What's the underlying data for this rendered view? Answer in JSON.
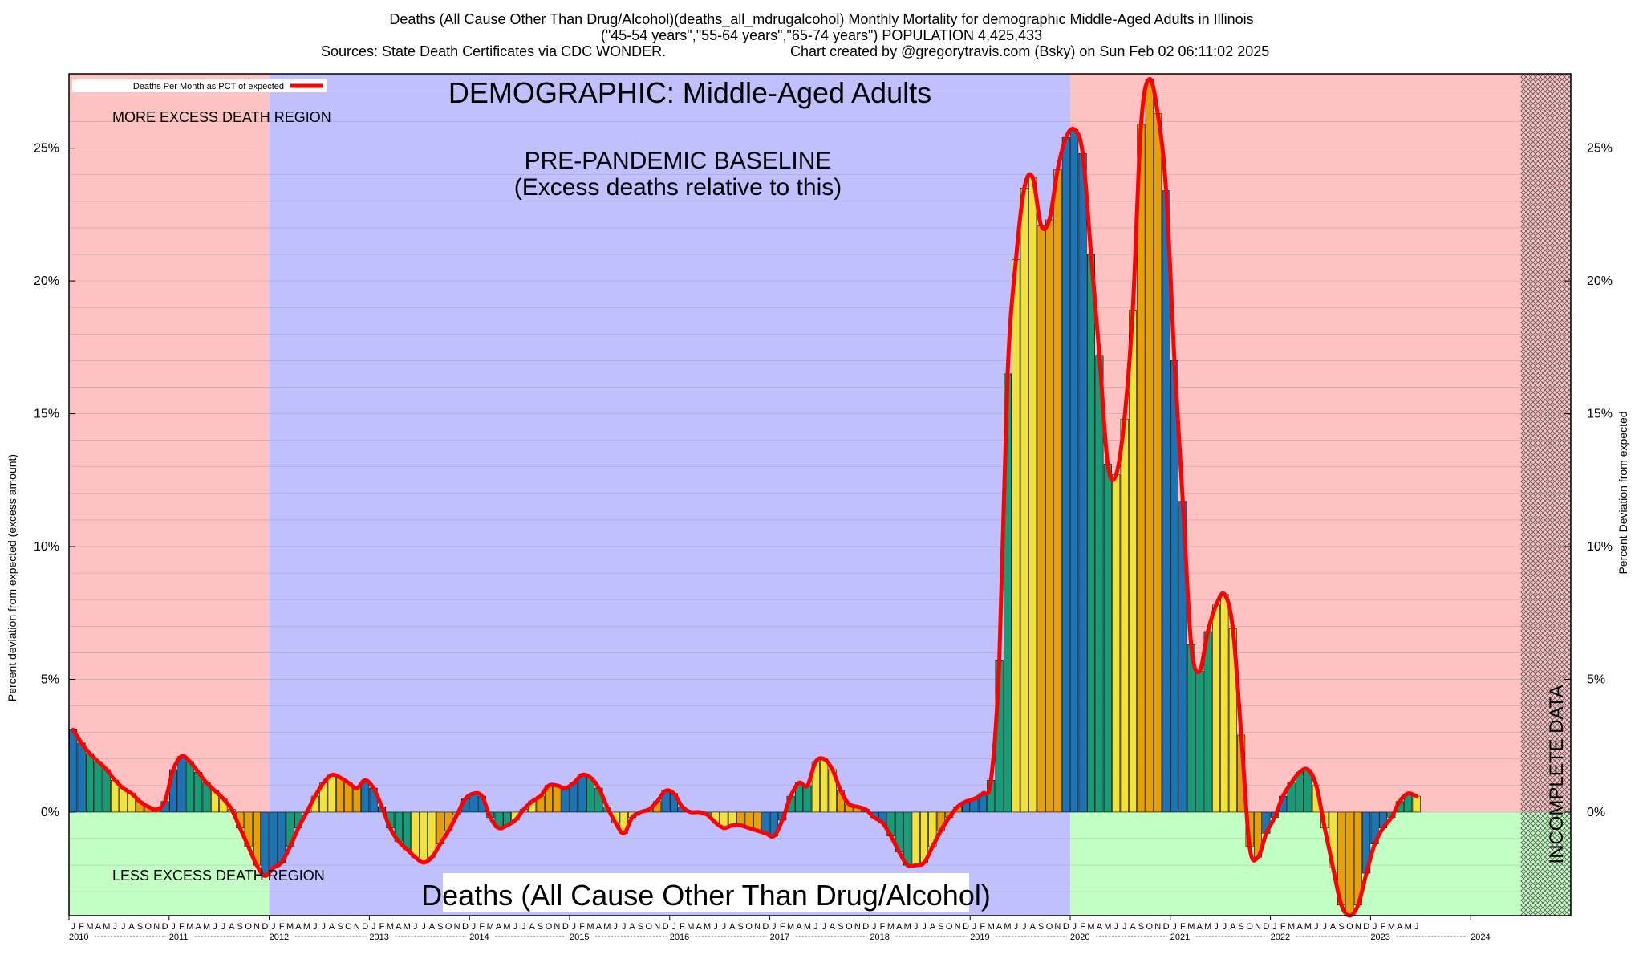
{
  "chart_data": {
    "type": "bar",
    "title_lines": [
      "Deaths (All Cause Other Than Drug/Alcohol)(deaths_all_mdrugalcohol) Monthly Mortality for demographic Middle-Aged Adults in Illinois",
      "(\"45-54 years\",\"55-64 years\",\"65-74 years\") POPULATION 4,425,433"
    ],
    "source_left": "Sources: State Death Certificates via CDC WONDER.",
    "source_right": "Chart created by @gregorytravis.com (Bsky) on Sun Feb 02 06:11:02 2025",
    "legend_label": "Deaths Per Month as PCT of expected",
    "demographic_label": "DEMOGRAPHIC: Middle-Aged Adults",
    "baseline_label_1": "PRE-PANDEMIC BASELINE",
    "baseline_label_2": "(Excess deaths relative to this)",
    "more_region_label": "MORE EXCESS DEATH REGION",
    "less_region_label": "LESS EXCESS DEATH REGION",
    "bottom_title": "Deaths (All Cause Other Than Drug/Alcohol)",
    "incomplete_label": "INCOMPLETE DATA",
    "ylabel_left": "Percent deviation from expected (excess amount)",
    "ylabel_right": "Percent Deviation from expected",
    "ylim": [
      -3.9,
      27.8
    ],
    "yticks": [
      0,
      5,
      10,
      15,
      20,
      25
    ],
    "ytick_labels": [
      "0%",
      "5%",
      "10%",
      "15%",
      "20%",
      "25%"
    ],
    "years": [
      "2010",
      "2011",
      "2012",
      "2013",
      "2014",
      "2015",
      "2016",
      "2017",
      "2018",
      "2019",
      "2020",
      "2021",
      "2022",
      "2023",
      "2024"
    ],
    "month_letters": [
      "J",
      "F",
      "M",
      "A",
      "M",
      "J",
      "J",
      "A",
      "S",
      "O",
      "N",
      "D"
    ],
    "start": "2010-01",
    "baseline_period": [
      "2012-01",
      "2019-12"
    ],
    "incomplete_from": "2024-07",
    "series_colors": {
      "winter": "#1a74b6",
      "spring": "#169c76",
      "summer": "#f2e33c",
      "autumn": "#e5a00a"
    },
    "line_color": "#ff0000",
    "region_colors": {
      "more": "#ffc2c2",
      "less": "#c2ffc2",
      "baseline": "#c0c0ff"
    },
    "values": [
      3.1,
      2.6,
      2.2,
      1.9,
      1.6,
      1.2,
      0.9,
      0.7,
      0.4,
      0.2,
      0.1,
      0.4,
      1.6,
      2.1,
      1.9,
      1.5,
      1.1,
      0.8,
      0.5,
      0.1,
      -0.6,
      -1.3,
      -2.0,
      -2.4,
      -2.1,
      -1.9,
      -1.3,
      -0.6,
      0.0,
      0.6,
      1.1,
      1.4,
      1.3,
      1.1,
      0.9,
      1.2,
      0.9,
      0.2,
      -0.6,
      -1.1,
      -1.4,
      -1.7,
      -1.9,
      -1.7,
      -1.2,
      -0.7,
      -0.1,
      0.5,
      0.7,
      0.6,
      -0.2,
      -0.6,
      -0.5,
      -0.3,
      0.1,
      0.4,
      0.6,
      1.0,
      1.0,
      0.9,
      1.1,
      1.4,
      1.3,
      0.9,
      0.2,
      -0.4,
      -0.8,
      -0.2,
      0.0,
      0.1,
      0.4,
      0.8,
      0.7,
      0.2,
      0.0,
      0.0,
      -0.1,
      -0.4,
      -0.6,
      -0.5,
      -0.5,
      -0.6,
      -0.7,
      -0.8,
      -0.9,
      -0.3,
      0.6,
      1.1,
      1.0,
      1.9,
      2.0,
      1.6,
      0.8,
      0.3,
      0.2,
      0.1,
      -0.2,
      -0.4,
      -0.9,
      -1.5,
      -2.0,
      -2.0,
      -1.9,
      -1.3,
      -0.7,
      -0.2,
      0.2,
      0.4,
      0.5,
      0.7,
      1.2,
      5.7,
      16.5,
      20.8,
      23.5,
      23.9,
      22.1,
      22.3,
      24.2,
      25.4,
      25.7,
      24.8,
      21.0,
      17.2,
      13.1,
      12.7,
      14.8,
      18.9,
      25.9,
      27.6,
      26.3,
      23.4,
      17.0,
      11.7,
      6.3,
      5.3,
      6.8,
      7.8,
      8.2,
      6.9,
      2.9,
      -1.3,
      -1.7,
      -0.8,
      -0.2,
      0.6,
      1.1,
      1.5,
      1.6,
      1.0,
      -0.6,
      -2.1,
      -3.5,
      -3.9,
      -3.5,
      -2.3,
      -1.2,
      -0.6,
      -0.2,
      0.4,
      0.7,
      0.6
    ]
  }
}
